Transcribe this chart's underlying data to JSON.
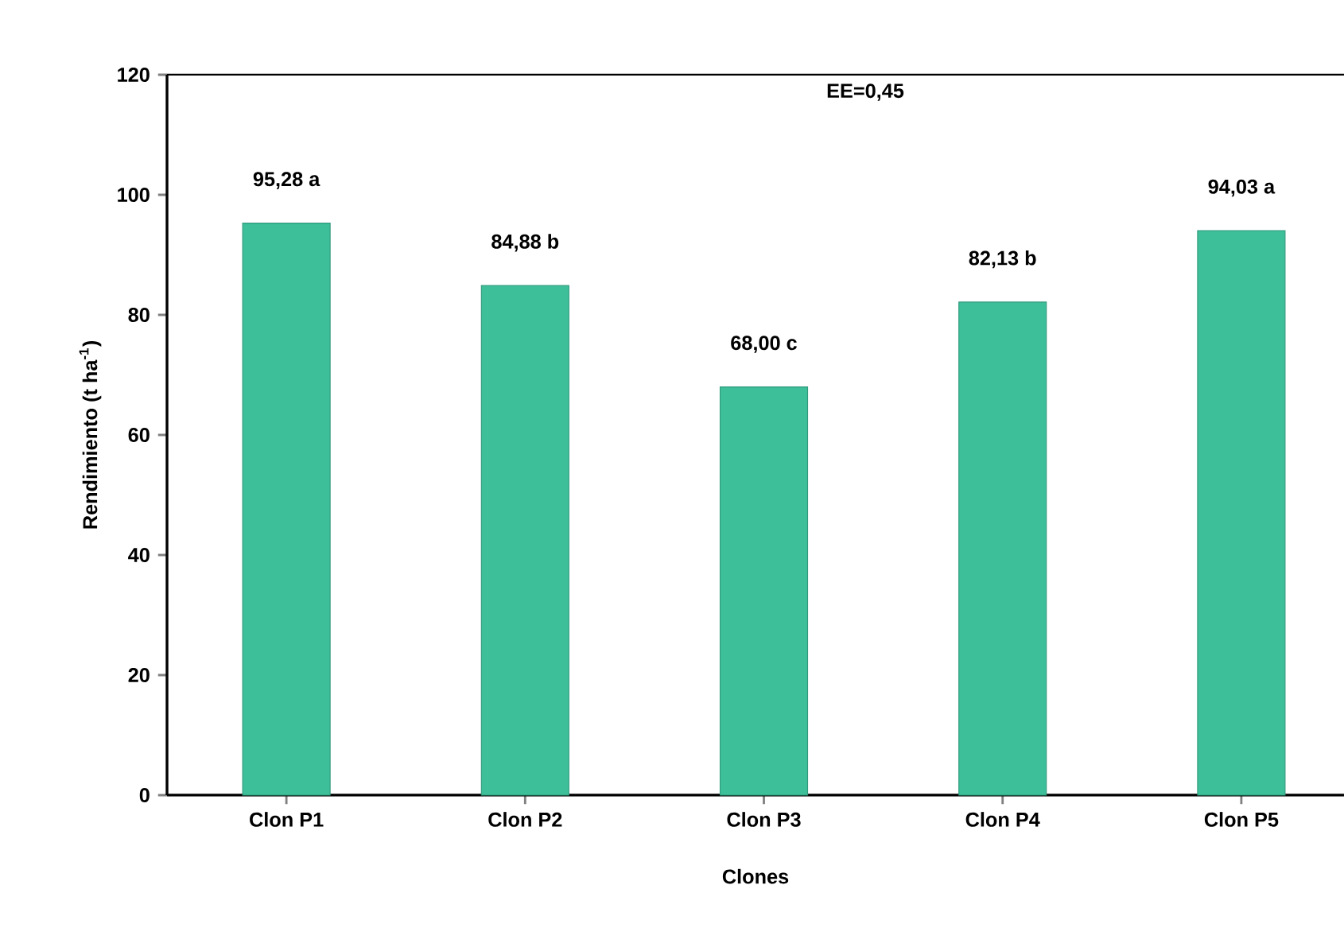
{
  "chart_data": {
    "type": "bar",
    "xlabel": "Clones",
    "ylabel": "Rendimiento (t ha$^{-1}$)",
    "categories": [
      "Clon P1",
      "Clon P2",
      "Clon P3",
      "Clon P4",
      "Clon P5"
    ],
    "values": [
      95.28,
      84.88,
      68.0,
      82.13,
      94.03
    ],
    "value_labels": [
      "95,28 a",
      "84,88 b",
      "68,00 c",
      "82,13 b",
      "94,03 a"
    ],
    "color": "#3dbf9a",
    "ylim": [
      0,
      120
    ],
    "yticks": [
      0,
      20,
      40,
      60,
      80,
      100,
      120
    ],
    "annotations": [
      "EE=0,45"
    ],
    "grid": false
  }
}
